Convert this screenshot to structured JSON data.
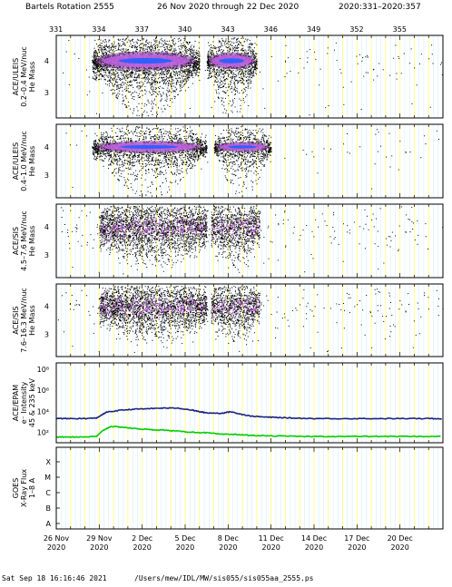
{
  "header": {
    "rotation": "Bartels Rotation 2555",
    "date_range": "26 Nov 2020 through 22 Dec 2020",
    "doy_range": "2020:331–2020:357"
  },
  "footer": {
    "timestamp": "Sat Sep 18 16:16:46 2021",
    "path": "/Users/mew/IDL/MW/sis055/sis055aa_2555.ps"
  },
  "colors": {
    "guide_yellow": "#ffff66",
    "guide_cyan": "#99ddff",
    "dots": "#000000",
    "density_low": "#7b2a9a",
    "density_mid": "#c060e0",
    "density_high": "#2060ff",
    "epam_high": "#1a237e",
    "epam_low": "#00cc00"
  },
  "chart_data": {
    "type": "scatter",
    "doy_ticks": [
      "331",
      "334",
      "337",
      "340",
      "343",
      "346",
      "349",
      "352",
      "355"
    ],
    "date_ticks": [
      {
        "day": "26 Nov",
        "year": "2020"
      },
      {
        "day": "29 Nov",
        "year": "2020"
      },
      {
        "day": "2 Dec",
        "year": "2020"
      },
      {
        "day": "5 Dec",
        "year": "2020"
      },
      {
        "day": "8 Dec",
        "year": "2020"
      },
      {
        "day": "11 Dec",
        "year": "2020"
      },
      {
        "day": "14 Dec",
        "year": "2020"
      },
      {
        "day": "17 Dec",
        "year": "2020"
      },
      {
        "day": "20 Dec",
        "year": "2020"
      }
    ],
    "xlim_doy": [
      331,
      358
    ],
    "panels": [
      {
        "id": "uleis1",
        "label_lines": [
          "ACE/ULEIS",
          "0.2–0.4 MeV/nuc",
          "He Mass"
        ],
        "ylim": [
          2.2,
          4.8
        ],
        "yticks": [
          "3",
          "4"
        ],
        "clusters": [
          {
            "start": 333.5,
            "end": 341.0,
            "center": 4.0,
            "spread": 0.25,
            "density": 1.0
          },
          {
            "start": 341.5,
            "end": 345.0,
            "center": 4.0,
            "spread": 0.22,
            "density": 0.9
          }
        ],
        "background_density": 0.25
      },
      {
        "id": "uleis2",
        "label_lines": [
          "ACE/ULEIS",
          "0.4–1.0 MeV/nuc",
          "He Mass"
        ],
        "ylim": [
          2.2,
          4.8
        ],
        "yticks": [
          "3",
          "4"
        ],
        "clusters": [
          {
            "start": 333.5,
            "end": 341.5,
            "center": 4.0,
            "spread": 0.18,
            "density": 0.8
          },
          {
            "start": 342.0,
            "end": 346.0,
            "center": 4.0,
            "spread": 0.15,
            "density": 0.65
          }
        ],
        "background_density": 0.12
      },
      {
        "id": "sis1",
        "label_lines": [
          "ACE/SIS",
          "4.5–7.6 MeV/nuc",
          "He Mass"
        ],
        "ylim": [
          2.2,
          4.8
        ],
        "yticks": [
          "3",
          "4"
        ],
        "clusters": [
          {
            "start": 334.0,
            "end": 341.5,
            "center": 4.0,
            "spread": 0.35,
            "density": 1.0
          },
          {
            "start": 341.8,
            "end": 345.2,
            "center": 4.0,
            "spread": 0.35,
            "density": 0.9
          }
        ],
        "background_density": 0.3
      },
      {
        "id": "sis2",
        "label_lines": [
          "ACE/SIS",
          "7.6–16.3 MeV/nuc",
          "He Mass"
        ],
        "ylim": [
          2.2,
          4.8
        ],
        "yticks": [
          "3",
          "4"
        ],
        "clusters": [
          {
            "start": 334.0,
            "end": 341.5,
            "center": 4.0,
            "spread": 0.3,
            "density": 0.95
          },
          {
            "start": 341.8,
            "end": 345.2,
            "center": 4.0,
            "spread": 0.3,
            "density": 0.85
          }
        ],
        "background_density": 0.35
      }
    ],
    "epam": {
      "label_lines": [
        "ACE/EPAM",
        "e⁻ Intensity",
        "45 & 235 keV"
      ],
      "yticks": [
        "10⁸",
        "10⁶",
        "10⁴",
        "10²"
      ],
      "ylim_log": [
        1,
        8.6
      ],
      "series": [
        {
          "key": "high",
          "x": [
            331,
            332,
            333,
            333.8,
            334.5,
            335.5,
            336.5,
            337.5,
            338.5,
            339.5,
            340.5,
            341.0,
            341.5,
            342.5,
            343.2,
            343.8,
            344.5,
            345.5,
            346.5,
            347.5,
            349,
            351,
            353,
            355,
            357,
            358
          ],
          "log": [
            3.3,
            3.3,
            3.3,
            3.35,
            3.9,
            4.1,
            4.2,
            4.25,
            4.3,
            4.3,
            4.1,
            3.95,
            3.85,
            3.8,
            3.95,
            3.75,
            3.55,
            3.45,
            3.4,
            3.35,
            3.3,
            3.3,
            3.3,
            3.3,
            3.3,
            3.3
          ]
        },
        {
          "key": "low",
          "x": [
            331,
            332,
            333,
            333.8,
            334.3,
            334.8,
            335.5,
            336.5,
            337.5,
            338.5,
            339.5,
            340.5,
            341.5,
            342.5,
            343.5,
            344.5,
            346,
            348,
            350,
            352,
            354,
            356,
            358
          ],
          "log": [
            1.55,
            1.55,
            1.55,
            1.6,
            2.2,
            2.55,
            2.5,
            2.35,
            2.25,
            2.2,
            2.1,
            2.0,
            1.95,
            1.8,
            1.8,
            1.7,
            1.65,
            1.6,
            1.6,
            1.6,
            1.6,
            1.6,
            1.6
          ]
        }
      ]
    },
    "goes": {
      "label_lines": [
        "GOES",
        "X-Ray Flux",
        "1–8 A"
      ],
      "yticks": [
        "X",
        "M",
        "C",
        "B",
        "A"
      ]
    }
  }
}
